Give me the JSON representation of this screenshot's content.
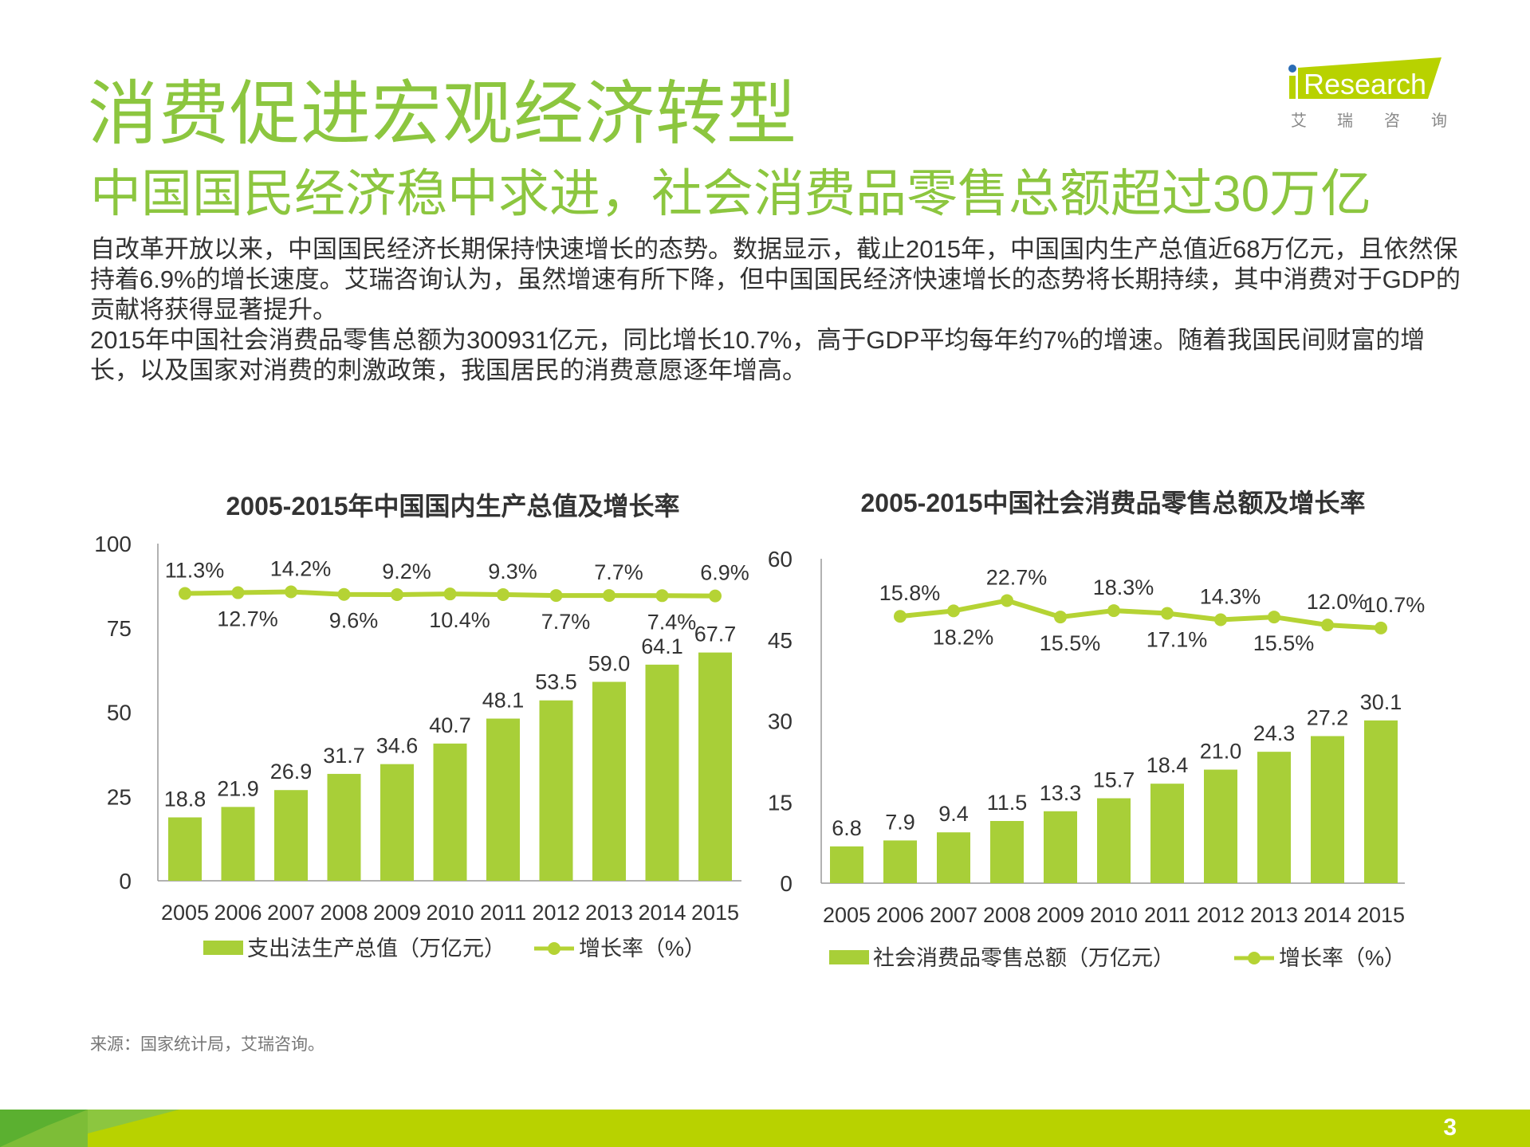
{
  "header": {
    "title": "消费促进宏观经济转型",
    "subtitle": "中国国民经济稳中求进，社会消费品零售总额超过30万亿",
    "logo": {
      "brand": "iResearch",
      "chinese": "艾 瑞 咨 询"
    }
  },
  "body": {
    "paragraphs": [
      "自改革开放以来，中国国民经济长期保持快速增长的态势。数据显示，截止2015年，中国国内生产总值近68万亿元，且依然保持着6.9%的增长速度。艾瑞咨询认为，虽然增速有所下降，但中国国民经济快速增长的态势将长期持续，其中消费对于GDP的贡献将获得显著提升。",
      "2015年中国社会消费品零售总额为300931亿元，同比增长10.7%，高于GDP平均每年约7%的增速。随着我国民间财富的增长，以及国家对消费的刺激政策，我国居民的消费意愿逐年增高。"
    ]
  },
  "colors": {
    "accent": "#8cc63f",
    "bar": "#a8cf38",
    "line": "#b5d334",
    "footer": "#b8d200",
    "footer_dark": "#5bb030",
    "logo_dot": "#2a6cb5"
  },
  "chart_data": [
    {
      "type": "bar",
      "title": "2005-2015年中国国内生产总值及增长率",
      "categories": [
        "2005",
        "2006",
        "2007",
        "2008",
        "2009",
        "2010",
        "2011",
        "2012",
        "2013",
        "2014",
        "2015"
      ],
      "ylim": [
        0,
        100
      ],
      "yticks": [
        "0",
        "25",
        "50",
        "75",
        "100"
      ],
      "y2lim": [
        -500,
        100
      ],
      "series": [
        {
          "name": "支出法生产总值（万亿元）",
          "type": "bar",
          "values": [
            18.8,
            21.9,
            26.9,
            31.7,
            34.6,
            40.7,
            48.1,
            53.5,
            59.0,
            64.1,
            67.7
          ],
          "labels": [
            "18.8",
            "21.9",
            "26.9",
            "31.7",
            "34.6",
            "40.7",
            "48.1",
            "53.5",
            "59.0",
            "64.1",
            "67.7"
          ]
        },
        {
          "name": "增长率（%）",
          "type": "line",
          "axis": "secondary-hidden",
          "values": [
            11.3,
            12.7,
            14.2,
            9.6,
            9.2,
            10.4,
            9.3,
            7.7,
            7.7,
            7.4,
            6.9
          ],
          "labels": [
            "11.3%",
            "12.7%",
            "14.2%",
            "9.6%",
            "9.2%",
            "10.4%",
            "9.3%",
            "7.7%",
            "7.7%",
            "7.4%",
            "6.9%"
          ]
        }
      ],
      "legend": "bottom",
      "grid": false
    },
    {
      "type": "bar",
      "title": "2005-2015中国社会消费品零售总额及增长率",
      "categories": [
        "2005",
        "2006",
        "2007",
        "2008",
        "2009",
        "2010",
        "2011",
        "2012",
        "2013",
        "2014",
        "2015"
      ],
      "ylim": [
        0,
        60
      ],
      "yticks": [
        "0",
        "15",
        "30",
        "45",
        "60"
      ],
      "y2lim": [
        -101,
        41
      ],
      "series": [
        {
          "name": "社会消费品零售总额（万亿元）",
          "type": "bar",
          "values": [
            6.8,
            7.9,
            9.4,
            11.5,
            13.3,
            15.7,
            18.4,
            21.0,
            24.3,
            27.2,
            30.1
          ],
          "labels": [
            "6.8",
            "7.9",
            "9.4",
            "11.5",
            "13.3",
            "15.7",
            "18.4",
            "21.0",
            "24.3",
            "27.2",
            "30.1"
          ]
        },
        {
          "name": "增长率（%）",
          "type": "line",
          "axis": "secondary-hidden",
          "values": [
            null,
            15.8,
            18.2,
            22.7,
            15.5,
            18.3,
            17.1,
            14.3,
            15.5,
            12.0,
            10.7
          ],
          "labels": [
            "",
            "15.8%",
            "18.2%",
            "22.7%",
            "15.5%",
            "18.3%",
            "17.1%",
            "14.3%",
            "15.5%",
            "12.0%",
            "10.7%"
          ]
        }
      ],
      "legend": "bottom",
      "grid": false
    }
  ],
  "footer": {
    "source": "来源：国家统计局，艾瑞咨询。",
    "page_number": "3"
  }
}
